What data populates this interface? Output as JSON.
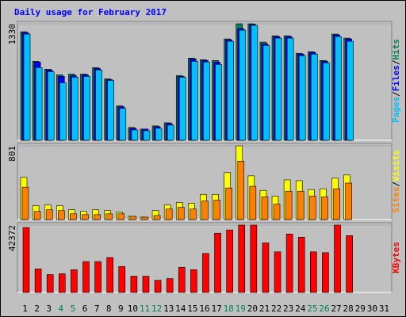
{
  "chart_data": [
    {
      "type": "bar",
      "ylim": [
        0,
        1330
      ],
      "yticks": [
        1330
      ],
      "legend_separator": "/",
      "series": [
        {
          "name": "Hits",
          "color": "#00805c",
          "values": [
            1239,
            902,
            811,
            747,
            756,
            756,
            829,
            701,
            392,
            146,
            128,
            164,
            200,
            738,
            938,
            920,
            911,
            1157,
            1330,
            1330,
            1121,
            1193,
            1193,
            993,
            1011,
            911,
            1212,
            1166,
            null,
            null,
            null
          ]
        },
        {
          "name": "Files",
          "color": "#0000ff",
          "values": [
            1230,
            893,
            802,
            729,
            738,
            747,
            820,
            692,
            383,
            137,
            128,
            155,
            191,
            729,
            929,
            911,
            893,
            1148,
            1275,
            1321,
            1102,
            1184,
            1184,
            984,
            1002,
            902,
            1203,
            1157,
            null,
            null,
            null
          ]
        },
        {
          "name": "Pages",
          "color": "#00c0ff",
          "values": [
            1212,
            829,
            783,
            656,
            720,
            729,
            802,
            683,
            364,
            118,
            109,
            137,
            173,
            720,
            902,
            893,
            865,
            1130,
            1257,
            1312,
            1084,
            1166,
            1166,
            966,
            984,
            884,
            1184,
            1130,
            null,
            null,
            null
          ]
        }
      ]
    },
    {
      "type": "bar",
      "ylim": [
        0,
        801
      ],
      "yticks": [
        801
      ],
      "legend_separator": "/",
      "series": [
        {
          "name": "Visits",
          "color": "#ffff00",
          "values": [
            458,
            150,
            158,
            150,
            106,
            88,
            106,
            97,
            79,
            35,
            26,
            97,
            158,
            185,
            176,
            273,
            273,
            510,
            801,
            475,
            317,
            255,
            431,
            422,
            326,
            334,
            449,
            484,
            null,
            null,
            null
          ]
        },
        {
          "name": "Sites",
          "color": "#ff8000",
          "values": [
            352,
            88,
            106,
            97,
            62,
            53,
            53,
            62,
            62,
            35,
            26,
            44,
            114,
            132,
            114,
            202,
            211,
            343,
            634,
            361,
            246,
            167,
            308,
            308,
            255,
            246,
            334,
            396,
            null,
            null,
            null
          ]
        }
      ]
    },
    {
      "type": "bar",
      "ylim": [
        0,
        42372
      ],
      "yticks": [
        42372
      ],
      "categories": [
        "1",
        "2",
        "3",
        "4",
        "5",
        "6",
        "7",
        "8",
        "9",
        "10",
        "11",
        "12",
        "13",
        "14",
        "15",
        "16",
        "17",
        "18",
        "19",
        "20",
        "21",
        "22",
        "23",
        "24",
        "25",
        "26",
        "27",
        "28",
        "29",
        "30",
        "31"
      ],
      "category_colors": [
        "#000000",
        "#000000",
        "#000000",
        "#00805c",
        "#00805c",
        "#000000",
        "#000000",
        "#000000",
        "#000000",
        "#000000",
        "#00805c",
        "#00805c",
        "#000000",
        "#000000",
        "#000000",
        "#000000",
        "#000000",
        "#00805c",
        "#00805c",
        "#000000",
        "#000000",
        "#000000",
        "#000000",
        "#000000",
        "#00805c",
        "#00805c",
        "#000000",
        "#000000",
        "#000000",
        "#000000",
        "#000000"
      ],
      "series": [
        {
          "name": "KBytes",
          "color": "#ff0000",
          "values": [
            40841,
            14807,
            11233,
            11743,
            14296,
            19401,
            19401,
            21953,
            16339,
            10212,
            10212,
            7658,
            8679,
            15828,
            14296,
            24506,
            37267,
            39309,
            42372,
            42372,
            31141,
            25527,
            36756,
            34714,
            25527,
            25017,
            42372,
            35735,
            null,
            null,
            null
          ]
        }
      ]
    }
  ],
  "title": "Daily usage for February 2017"
}
